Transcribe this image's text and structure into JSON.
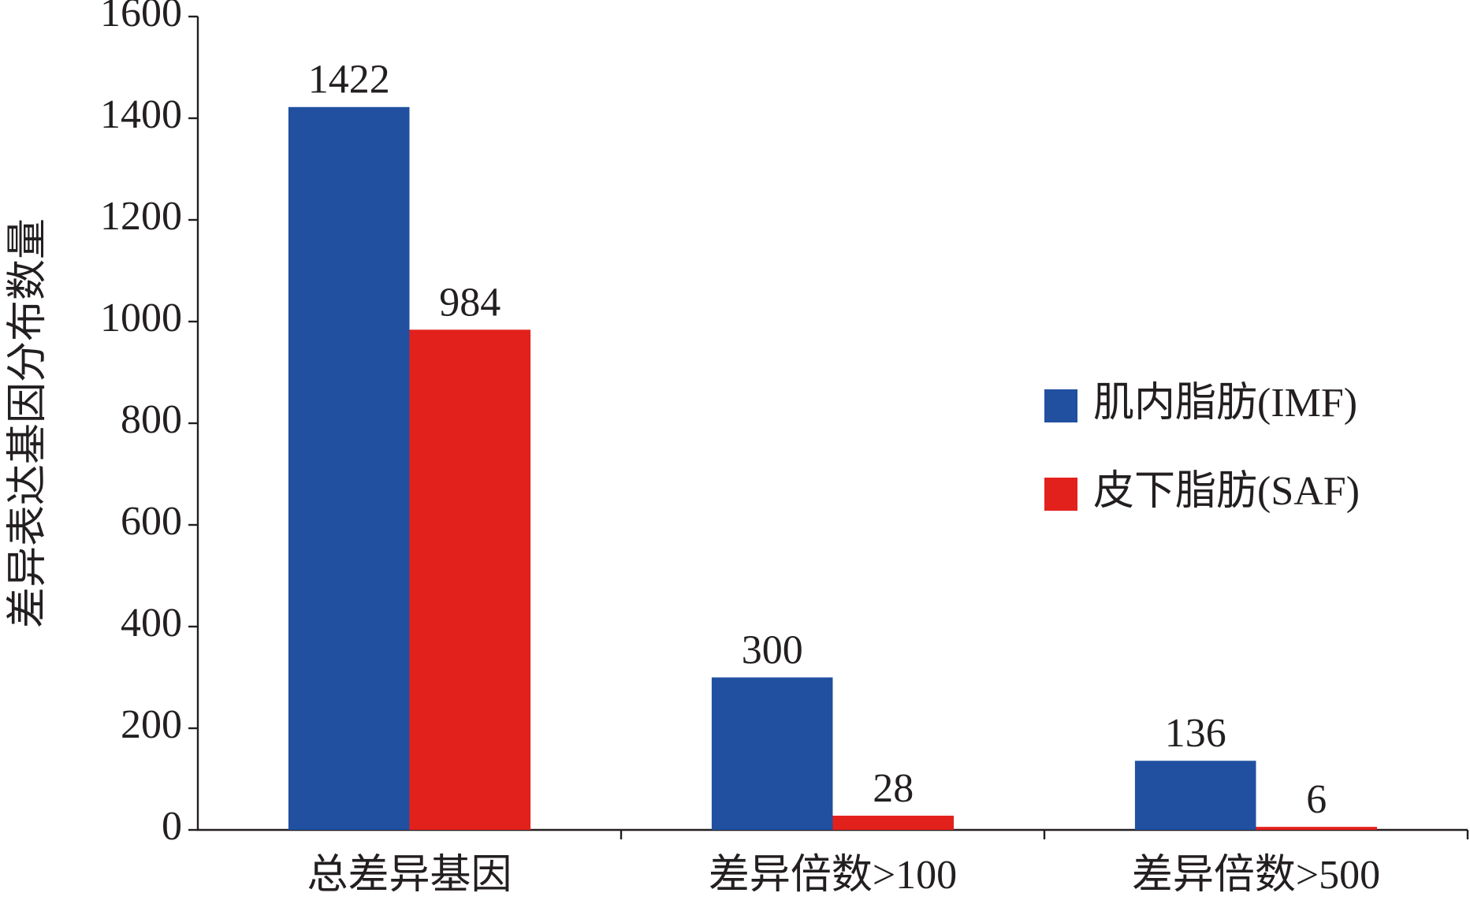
{
  "chart_data": {
    "type": "bar",
    "y_label": "差异表达基因分布数量",
    "categories": [
      "总差异基因",
      "差异倍数>100",
      "差异倍数>500"
    ],
    "series": [
      {
        "name": "肌内脂肪(IMF)",
        "color": "#2150a0",
        "values": [
          1422,
          300,
          136
        ]
      },
      {
        "name": "皮下脂肪(SAF)",
        "color": "#e3211c",
        "values": [
          984,
          28,
          6
        ]
      }
    ],
    "ylim": [
      0,
      1600
    ],
    "yticks": [
      0,
      200,
      400,
      600,
      800,
      1000,
      1200,
      1400,
      1600
    ],
    "legend": "right"
  }
}
